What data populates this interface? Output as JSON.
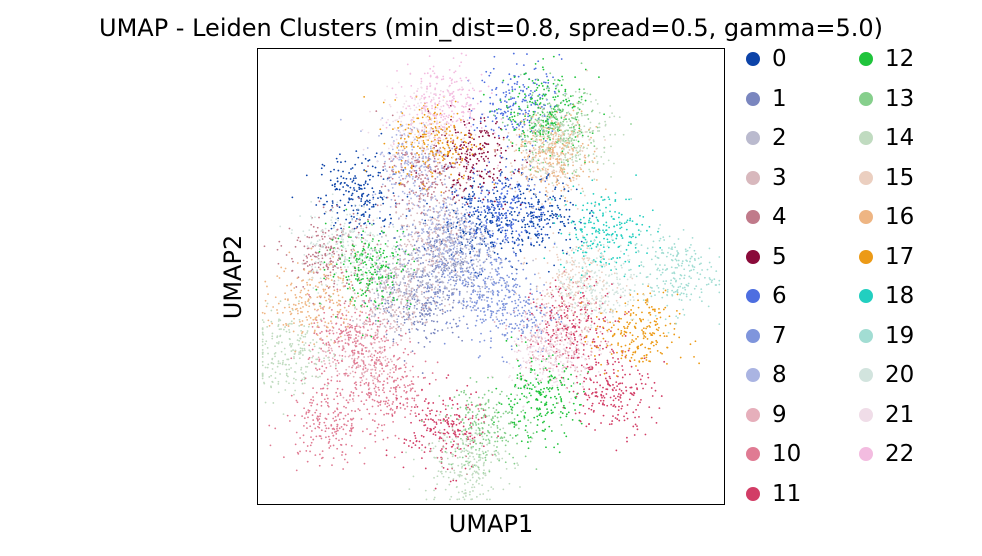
{
  "chart_data": {
    "type": "scatter",
    "title": "UMAP - Leiden Clusters (min_dist=0.8, spread=0.5, gamma=5.0)",
    "xlabel": "UMAP1",
    "ylabel": "UMAP2",
    "grid": false,
    "ticks": false,
    "legend_placement": "right, outside plot, two columns",
    "series": [
      {
        "name": "0",
        "color": "#0c43a8",
        "centers": [
          [
            0.22,
            0.68
          ],
          [
            0.47,
            0.62
          ],
          [
            0.6,
            0.63
          ]
        ]
      },
      {
        "name": "1",
        "color": "#7a86bf",
        "centers": [
          [
            0.4,
            0.55
          ],
          [
            0.35,
            0.44
          ]
        ]
      },
      {
        "name": "2",
        "color": "#babace",
        "centers": [
          [
            0.43,
            0.52
          ],
          [
            0.3,
            0.48
          ]
        ]
      },
      {
        "name": "3",
        "color": "#d8b8bd",
        "centers": [
          [
            0.3,
            0.45
          ],
          [
            0.37,
            0.6
          ]
        ]
      },
      {
        "name": "4",
        "color": "#c07a8a",
        "centers": [
          [
            0.36,
            0.72
          ],
          [
            0.15,
            0.55
          ]
        ]
      },
      {
        "name": "5",
        "color": "#8a0a3a",
        "centers": [
          [
            0.46,
            0.76
          ]
        ]
      },
      {
        "name": "6",
        "color": "#4d6ee0",
        "centers": [
          [
            0.56,
            0.88
          ],
          [
            0.53,
            0.65
          ]
        ]
      },
      {
        "name": "7",
        "color": "#7f95dc",
        "centers": [
          [
            0.47,
            0.48
          ],
          [
            0.55,
            0.42
          ]
        ]
      },
      {
        "name": "8",
        "color": "#aab4e2",
        "centers": [
          [
            0.33,
            0.75
          ],
          [
            0.4,
            0.6
          ]
        ]
      },
      {
        "name": "9",
        "color": "#e6afbb",
        "centers": [
          [
            0.22,
            0.33
          ],
          [
            0.64,
            0.36
          ]
        ]
      },
      {
        "name": "10",
        "color": "#e07b93",
        "centers": [
          [
            0.2,
            0.36
          ],
          [
            0.15,
            0.18
          ],
          [
            0.28,
            0.25
          ]
        ]
      },
      {
        "name": "11",
        "color": "#d23d66",
        "centers": [
          [
            0.4,
            0.16
          ],
          [
            0.68,
            0.4
          ],
          [
            0.76,
            0.25
          ]
        ]
      },
      {
        "name": "12",
        "color": "#1fc43b",
        "centers": [
          [
            0.6,
            0.23
          ],
          [
            0.24,
            0.52
          ],
          [
            0.62,
            0.86
          ]
        ]
      },
      {
        "name": "13",
        "color": "#86cf8c",
        "centers": [
          [
            0.64,
            0.82
          ],
          [
            0.49,
            0.17
          ]
        ]
      },
      {
        "name": "14",
        "color": "#c0dbc0",
        "centers": [
          [
            0.07,
            0.33
          ],
          [
            0.44,
            0.09
          ],
          [
            0.67,
            0.8
          ]
        ]
      },
      {
        "name": "15",
        "color": "#ebcfc0",
        "centers": [
          [
            0.62,
            0.76
          ],
          [
            0.68,
            0.48
          ]
        ]
      },
      {
        "name": "16",
        "color": "#eeb583",
        "centers": [
          [
            0.12,
            0.45
          ],
          [
            0.64,
            0.77
          ]
        ]
      },
      {
        "name": "17",
        "color": "#ec9a16",
        "centers": [
          [
            0.81,
            0.37
          ],
          [
            0.38,
            0.8
          ]
        ]
      },
      {
        "name": "18",
        "color": "#22cfc0",
        "centers": [
          [
            0.74,
            0.6
          ]
        ]
      },
      {
        "name": "19",
        "color": "#a2ddd3",
        "centers": [
          [
            0.89,
            0.51
          ]
        ]
      },
      {
        "name": "20",
        "color": "#d2e4de",
        "centers": [
          [
            0.73,
            0.48
          ],
          [
            0.18,
            0.57
          ]
        ]
      },
      {
        "name": "21",
        "color": "#f0dde8",
        "centers": [
          [
            0.63,
            0.32
          ],
          [
            0.35,
            0.83
          ]
        ]
      },
      {
        "name": "22",
        "color": "#f3bce0",
        "centers": [
          [
            0.4,
            0.88
          ]
        ]
      }
    ]
  }
}
